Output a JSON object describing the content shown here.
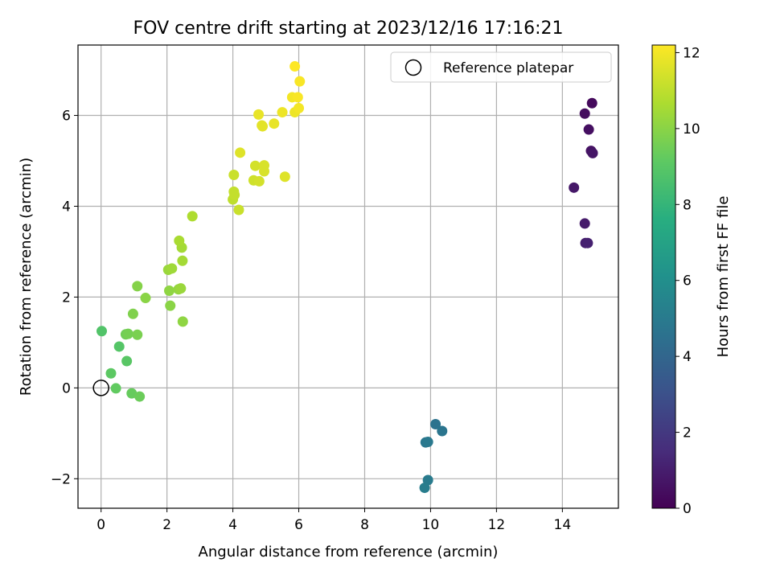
{
  "chart_data": {
    "type": "scatter",
    "title": "FOV centre drift starting at 2023/12/16 17:16:21",
    "xlabel": "Angular distance from reference (arcmin)",
    "ylabel": "Rotation from reference (arcmin)",
    "colorbar_label": "Hours from first FF file",
    "xlim": [
      -0.7,
      15.7
    ],
    "ylim": [
      -2.65,
      7.55
    ],
    "clim": [
      0,
      12.2
    ],
    "xticks": [
      0,
      2,
      4,
      6,
      8,
      10,
      12,
      14
    ],
    "yticks": [
      -2,
      0,
      2,
      4,
      6
    ],
    "cticks": [
      0,
      2,
      4,
      6,
      8,
      10,
      12
    ],
    "grid": true,
    "legend": {
      "position": "top-right",
      "label": "Reference platepar"
    },
    "reference_point": {
      "x": 0,
      "y": 0
    },
    "colormap": "viridis",
    "series": [
      {
        "points": [
          {
            "x": 14.9,
            "y": 6.27,
            "c": 0.3
          },
          {
            "x": 14.68,
            "y": 6.04,
            "c": 0.4
          },
          {
            "x": 14.8,
            "y": 5.69,
            "c": 0.5
          },
          {
            "x": 14.87,
            "y": 5.22,
            "c": 0.6
          },
          {
            "x": 14.92,
            "y": 5.17,
            "c": 0.7
          },
          {
            "x": 14.35,
            "y": 4.41,
            "c": 0.8
          },
          {
            "x": 14.68,
            "y": 3.62,
            "c": 0.9
          },
          {
            "x": 14.7,
            "y": 3.19,
            "c": 1.0
          },
          {
            "x": 14.77,
            "y": 3.19,
            "c": 1.1
          },
          {
            "x": 10.15,
            "y": -0.8,
            "c": 4.6
          },
          {
            "x": 10.35,
            "y": -0.95,
            "c": 4.7
          },
          {
            "x": 9.85,
            "y": -1.2,
            "c": 4.8
          },
          {
            "x": 9.92,
            "y": -1.19,
            "c": 4.9
          },
          {
            "x": 9.92,
            "y": -2.03,
            "c": 5.0
          },
          {
            "x": 9.82,
            "y": -2.2,
            "c": 5.1
          },
          {
            "x": 0.02,
            "y": 1.25,
            "c": 8.8
          },
          {
            "x": 0.55,
            "y": 0.91,
            "c": 8.9
          },
          {
            "x": 0.78,
            "y": 0.59,
            "c": 9.0
          },
          {
            "x": 0.3,
            "y": 0.32,
            "c": 9.1
          },
          {
            "x": 0.45,
            "y": -0.01,
            "c": 9.2
          },
          {
            "x": 0.93,
            "y": -0.12,
            "c": 9.3
          },
          {
            "x": 1.17,
            "y": -0.19,
            "c": 9.4
          },
          {
            "x": 0.75,
            "y": 1.18,
            "c": 9.5
          },
          {
            "x": 0.82,
            "y": 1.19,
            "c": 9.6
          },
          {
            "x": 1.1,
            "y": 1.17,
            "c": 9.7
          },
          {
            "x": 0.97,
            "y": 1.63,
            "c": 9.8
          },
          {
            "x": 1.1,
            "y": 2.24,
            "c": 9.9
          },
          {
            "x": 1.35,
            "y": 1.98,
            "c": 10.0
          },
          {
            "x": 2.1,
            "y": 1.81,
            "c": 10.0
          },
          {
            "x": 2.48,
            "y": 1.46,
            "c": 10.1
          },
          {
            "x": 2.07,
            "y": 2.14,
            "c": 10.1
          },
          {
            "x": 2.35,
            "y": 2.17,
            "c": 10.2
          },
          {
            "x": 2.42,
            "y": 2.19,
            "c": 10.3
          },
          {
            "x": 2.04,
            "y": 2.6,
            "c": 10.3
          },
          {
            "x": 2.15,
            "y": 2.63,
            "c": 10.4
          },
          {
            "x": 2.47,
            "y": 2.8,
            "c": 10.5
          },
          {
            "x": 2.45,
            "y": 3.09,
            "c": 10.5
          },
          {
            "x": 2.37,
            "y": 3.24,
            "c": 10.6
          },
          {
            "x": 2.77,
            "y": 3.78,
            "c": 10.7
          },
          {
            "x": 4.0,
            "y": 4.15,
            "c": 11.0
          },
          {
            "x": 4.05,
            "y": 4.25,
            "c": 11.1
          },
          {
            "x": 4.03,
            "y": 4.32,
            "c": 11.1
          },
          {
            "x": 4.18,
            "y": 3.92,
            "c": 11.2
          },
          {
            "x": 4.03,
            "y": 4.69,
            "c": 11.2
          },
          {
            "x": 4.63,
            "y": 4.57,
            "c": 11.3
          },
          {
            "x": 4.8,
            "y": 4.55,
            "c": 11.4
          },
          {
            "x": 4.68,
            "y": 4.89,
            "c": 11.4
          },
          {
            "x": 4.95,
            "y": 4.9,
            "c": 11.5
          },
          {
            "x": 4.95,
            "y": 4.77,
            "c": 11.5
          },
          {
            "x": 4.22,
            "y": 5.18,
            "c": 11.6
          },
          {
            "x": 5.58,
            "y": 4.65,
            "c": 11.6
          },
          {
            "x": 4.88,
            "y": 5.78,
            "c": 11.7
          },
          {
            "x": 4.9,
            "y": 5.76,
            "c": 11.7
          },
          {
            "x": 5.25,
            "y": 5.82,
            "c": 11.8
          },
          {
            "x": 4.78,
            "y": 6.02,
            "c": 11.8
          },
          {
            "x": 5.5,
            "y": 6.07,
            "c": 11.9
          },
          {
            "x": 5.88,
            "y": 6.07,
            "c": 11.9
          },
          {
            "x": 6.0,
            "y": 6.16,
            "c": 12.0
          },
          {
            "x": 5.8,
            "y": 6.4,
            "c": 12.0
          },
          {
            "x": 5.97,
            "y": 6.4,
            "c": 12.1
          },
          {
            "x": 6.03,
            "y": 6.75,
            "c": 12.1
          },
          {
            "x": 5.88,
            "y": 7.08,
            "c": 12.2
          }
        ]
      }
    ]
  }
}
